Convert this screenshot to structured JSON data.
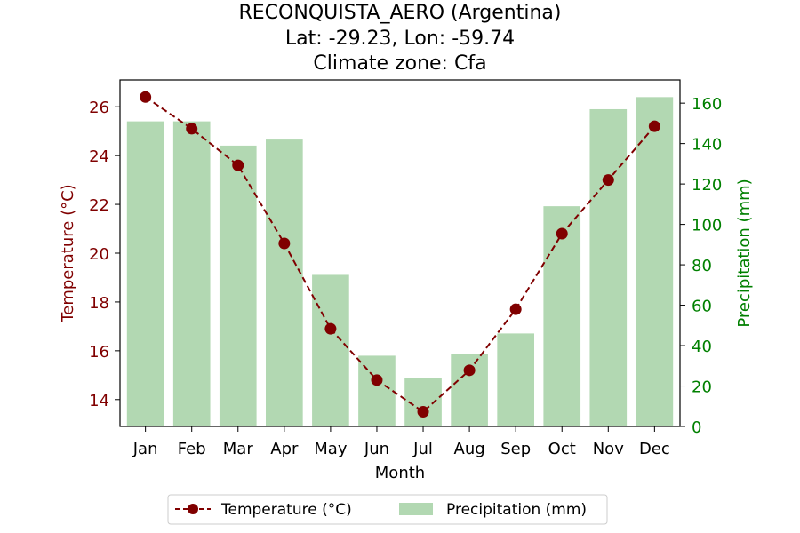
{
  "chart_data": {
    "type": "bar+line",
    "title_lines": [
      "RECONQUISTA_AERO (Argentina)",
      "Lat: -29.23, Lon: -59.74",
      "Climate zone: Cfa"
    ],
    "xlabel": "Month",
    "categories": [
      "Jan",
      "Feb",
      "Mar",
      "Apr",
      "May",
      "Jun",
      "Jul",
      "Aug",
      "Sep",
      "Oct",
      "Nov",
      "Dec"
    ],
    "temperature": {
      "name": "Temperature (°C)",
      "axis_label": "Temperature (°C)",
      "color": "#800000",
      "values": [
        26.4,
        25.1,
        23.6,
        20.4,
        16.9,
        14.8,
        13.5,
        15.2,
        17.7,
        20.8,
        23.0,
        25.2
      ],
      "ylim": [
        12.9,
        27.1
      ],
      "ticks": [
        14,
        16,
        18,
        20,
        22,
        24,
        26
      ]
    },
    "precipitation": {
      "name": "Precipitation (mm)",
      "axis_label": "Precipitation (mm)",
      "color": "#b2d8b2",
      "axis_color": "#008000",
      "values": [
        151,
        151,
        139,
        142,
        75,
        35,
        24,
        36,
        46,
        109,
        157,
        163
      ],
      "ylim": [
        0,
        171.5
      ],
      "ticks": [
        0,
        20,
        40,
        60,
        80,
        100,
        120,
        140,
        160
      ]
    },
    "legend_position": "bottom-center",
    "grid": false
  }
}
